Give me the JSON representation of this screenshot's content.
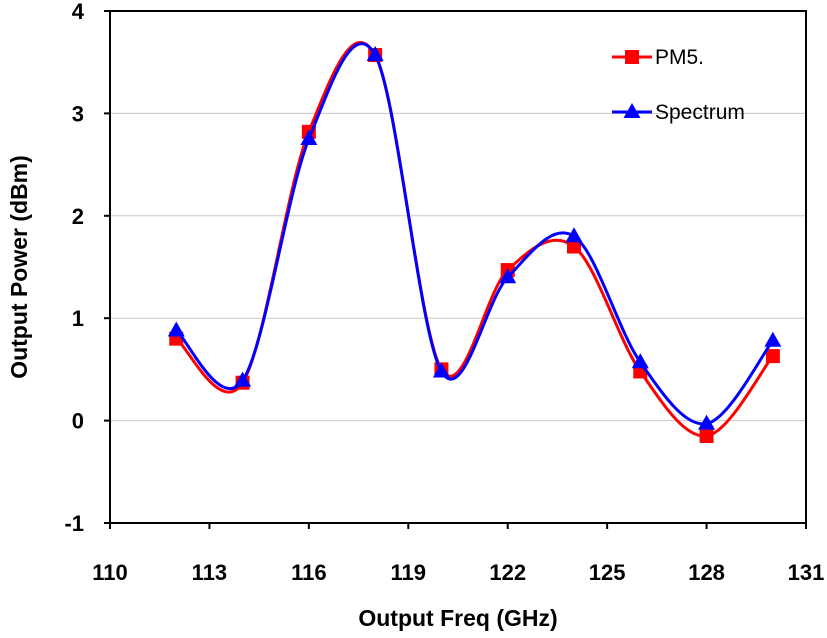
{
  "chart_data": {
    "type": "line",
    "title": "",
    "xlabel": "Output Freq (GHz)",
    "ylabel": "Output Power (dBm)",
    "xlim": [
      110,
      131
    ],
    "ylim": [
      -1,
      4
    ],
    "xticks": [
      110,
      113,
      116,
      119,
      122,
      125,
      128,
      131
    ],
    "yticks": [
      -1,
      0,
      1,
      2,
      3,
      4
    ],
    "grid": "horizontal",
    "legend_position": "top-right",
    "x": [
      112,
      114,
      116,
      118,
      120,
      122,
      124,
      126,
      128,
      130
    ],
    "series": [
      {
        "name": "PM5.",
        "color": "#ff0000",
        "marker": "square",
        "values": [
          0.8,
          0.37,
          2.82,
          3.57,
          0.5,
          1.47,
          1.7,
          0.48,
          -0.15,
          0.63
        ]
      },
      {
        "name": "Spectrum",
        "color": "#0000ff",
        "marker": "triangle",
        "values": [
          0.88,
          0.39,
          2.75,
          3.57,
          0.48,
          1.4,
          1.8,
          0.57,
          -0.03,
          0.78
        ]
      }
    ]
  }
}
